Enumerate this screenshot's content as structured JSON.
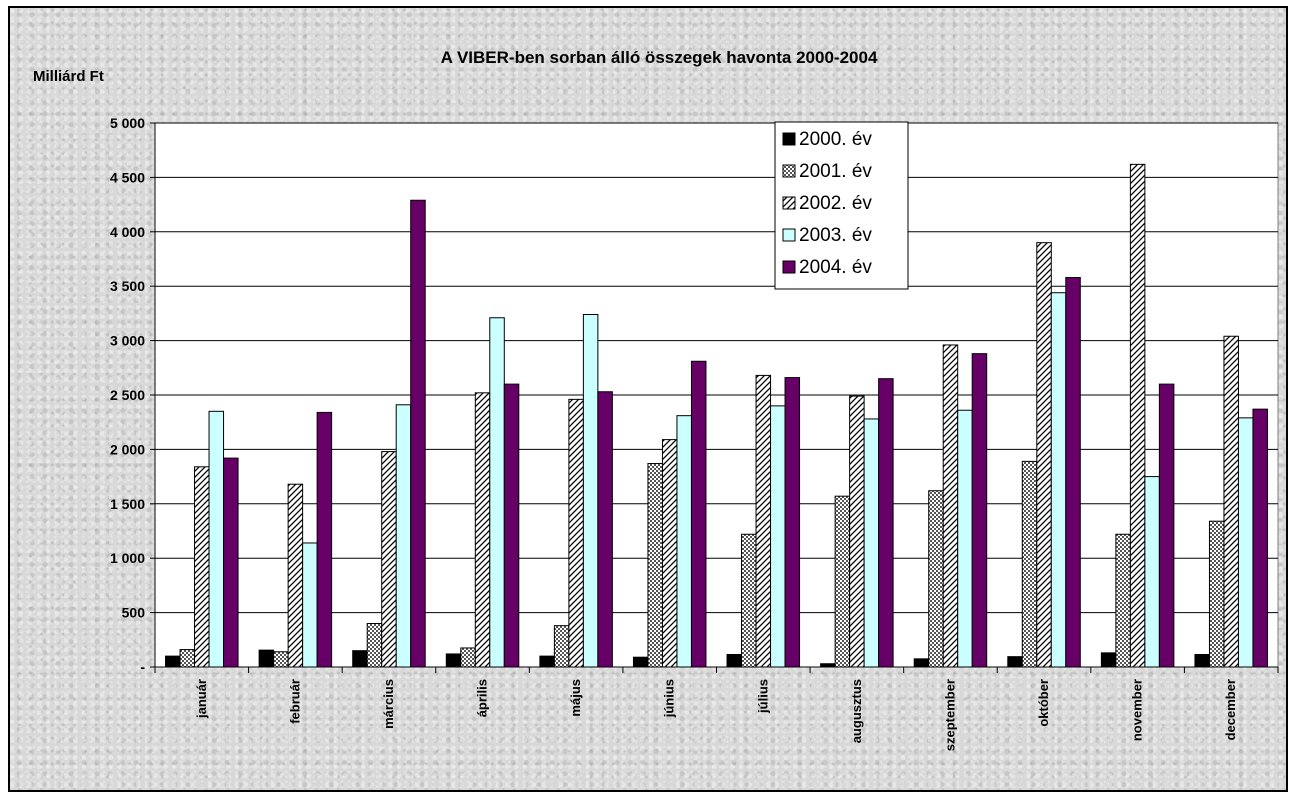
{
  "chart_data": {
    "type": "bar",
    "title": "A VIBER-ben sorban álló összegek havonta 2000-2004",
    "ylabel": "Milliárd Ft",
    "xlabel": "",
    "ylim": [
      0,
      5000
    ],
    "yticks": [
      0,
      500,
      1000,
      1500,
      2000,
      2500,
      3000,
      3500,
      4000,
      4500,
      5000
    ],
    "ytick_labels": [
      "-",
      "500",
      "1 000",
      "1 500",
      "2 000",
      "2 500",
      "3 000",
      "3 500",
      "4 000",
      "4 500",
      "5 000"
    ],
    "grid": true,
    "legend_position": "top-right",
    "categories": [
      "január",
      "február",
      "március",
      "április",
      "május",
      "június",
      "július",
      "augusztus",
      "szeptember",
      "október",
      "november",
      "december"
    ],
    "series": [
      {
        "name": "2000. év",
        "fill": "solid-black",
        "color": "#000000",
        "values": [
          100,
          155,
          150,
          120,
          100,
          90,
          115,
          30,
          75,
          95,
          130,
          115
        ]
      },
      {
        "name": "2001. év",
        "fill": "checker",
        "color": "#808080",
        "values": [
          160,
          140,
          400,
          175,
          380,
          1870,
          1220,
          1570,
          1620,
          1890,
          1220,
          1340
        ]
      },
      {
        "name": "2002. év",
        "fill": "diagonal",
        "color": "#808080",
        "values": [
          1840,
          1680,
          1980,
          2520,
          2460,
          2090,
          2680,
          2490,
          2960,
          3900,
          4620,
          3040
        ]
      },
      {
        "name": "2003. év",
        "fill": "solid",
        "color": "#ccffff",
        "values": [
          2350,
          1140,
          2410,
          3210,
          3240,
          2310,
          2400,
          2280,
          2360,
          3440,
          1750,
          2290
        ]
      },
      {
        "name": "2004. év",
        "fill": "solid",
        "color": "#660066",
        "values": [
          1920,
          2340,
          4290,
          2600,
          2530,
          2810,
          2660,
          2650,
          2880,
          3580,
          2600,
          2370
        ]
      }
    ]
  }
}
